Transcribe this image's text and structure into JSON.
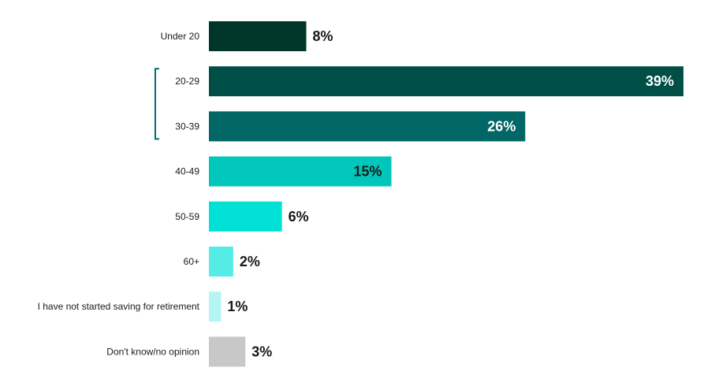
{
  "chart_data": {
    "type": "bar",
    "orientation": "horizontal",
    "categories": [
      "Under 20",
      "20-29",
      "30-39",
      "40-49",
      "50-59",
      "60+",
      "I have not started saving for retirement",
      "Don't know/no opinion"
    ],
    "values": [
      8,
      39,
      26,
      15,
      6,
      2,
      1,
      3
    ],
    "value_labels": [
      "8%",
      "39%",
      "26%",
      "15%",
      "6%",
      "2%",
      "1%",
      "3%"
    ],
    "colors": [
      "#00362A",
      "#004F47",
      "#006666",
      "#00C6BC",
      "#00E0D4",
      "#55ECE6",
      "#B3F5F2",
      "#C8C8C8"
    ],
    "label_inside": [
      false,
      true,
      true,
      true,
      false,
      false,
      false,
      false
    ],
    "label_colors": [
      "#1a1a1a",
      "#ffffff",
      "#ffffff",
      "#1a1a1a",
      "#1a1a1a",
      "#1a1a1a",
      "#1a1a1a",
      "#1a1a1a"
    ],
    "bracket_color": "#006B7A",
    "bracket_categories": [
      "20-29",
      "30-39"
    ],
    "xlim": [
      0,
      39
    ],
    "grid": false,
    "title": "",
    "xlabel": "",
    "ylabel": ""
  }
}
